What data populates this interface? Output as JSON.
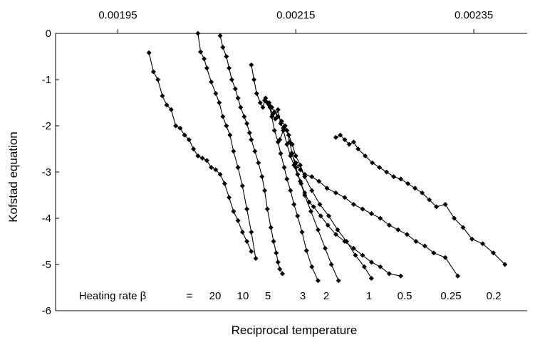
{
  "chart_data": {
    "type": "scatter",
    "title": "",
    "xlabel": "Reciprocal temperature",
    "ylabel": "Kofstad equation",
    "xlim": [
      0.00188,
      0.00241
    ],
    "ylim": [
      -6,
      0
    ],
    "x_ticks": [
      "0.00195",
      "0.00215",
      "0.00235"
    ],
    "y_ticks": [
      "0",
      "-1",
      "-2",
      "-3",
      "-4",
      "-5",
      "-6"
    ],
    "x_tick_values": [
      0.00195,
      0.00215,
      0.00235
    ],
    "y_tick_values": [
      0,
      -1,
      -2,
      -3,
      -4,
      -5,
      -6
    ],
    "grid": false,
    "marker": "diamond",
    "color": "#000000",
    "annotation": {
      "label": "Heating rate β",
      "equals": "=",
      "values": [
        "20",
        "10",
        "5",
        "3",
        "2",
        "1",
        "0.5",
        "0.25",
        "0.2"
      ]
    },
    "series": [
      {
        "x": [
          0.001985,
          0.00199,
          0.001995,
          0.002,
          0.002005,
          0.00201,
          0.002015,
          0.00202,
          0.002025,
          0.00203,
          0.002035,
          0.00204,
          0.002045,
          0.00205,
          0.002055,
          0.00206,
          0.002065,
          0.00207,
          0.002075,
          0.00208,
          0.002085,
          0.00209,
          0.002095,
          0.0021
        ],
        "y": [
          -0.42,
          -0.83,
          -1.0,
          -1.35,
          -1.55,
          -1.65,
          -2.0,
          -2.05,
          -2.2,
          -2.3,
          -2.5,
          -2.65,
          -2.7,
          -2.75,
          -2.9,
          -2.95,
          -3.05,
          -3.25,
          -3.55,
          -3.85,
          -4.05,
          -4.3,
          -4.5,
          -4.72
        ]
      },
      {
        "x": [
          0.00204,
          0.002043,
          0.002047,
          0.00205,
          0.002055,
          0.00206,
          0.002064,
          0.002068,
          0.002072,
          0.002076,
          0.00208,
          0.002085,
          0.00209,
          0.002095,
          0.0021,
          0.002105
        ],
        "y": [
          0,
          -0.4,
          -0.55,
          -0.75,
          -1.05,
          -1.3,
          -1.5,
          -1.8,
          -2.0,
          -2.2,
          -2.55,
          -2.9,
          -3.3,
          -3.8,
          -4.3,
          -4.87
        ]
      },
      {
        "x": [
          0.002065,
          0.002068,
          0.002072,
          0.002075,
          0.002078,
          0.002082,
          0.002085,
          0.002088,
          0.002092,
          0.002095,
          0.002098,
          0.0021,
          0.002104,
          0.002108,
          0.002112,
          0.002115,
          0.002118,
          0.002122,
          0.002125,
          0.002128,
          0.00213,
          0.002132,
          0.002135
        ],
        "y": [
          -0.05,
          -0.3,
          -0.5,
          -0.75,
          -1.0,
          -1.2,
          -1.4,
          -1.6,
          -1.8,
          -1.95,
          -2.15,
          -2.3,
          -2.55,
          -2.8,
          -3.1,
          -3.4,
          -3.8,
          -4.2,
          -4.5,
          -4.75,
          -4.95,
          -5.1,
          -5.2
        ]
      },
      {
        "x": [
          0.0021,
          0.002103,
          0.002106,
          0.00211,
          0.002113,
          0.002116,
          0.00212,
          0.002123,
          0.002126,
          0.00213,
          0.002133,
          0.002137,
          0.00214,
          0.002144,
          0.002148,
          0.002152,
          0.002157,
          0.002162,
          0.002168,
          0.002175
        ],
        "y": [
          -0.68,
          -1.0,
          -1.3,
          -1.5,
          -1.6,
          -1.4,
          -1.55,
          -1.8,
          -2.1,
          -2.35,
          -2.6,
          -2.9,
          -3.15,
          -3.4,
          -3.7,
          -3.95,
          -4.3,
          -4.7,
          -5.05,
          -5.35
        ]
      },
      {
        "x": [
          0.002115,
          0.002118,
          0.002121,
          0.002124,
          0.002127,
          0.00213,
          0.002133,
          0.002136,
          0.00214,
          0.002143,
          0.002146,
          0.00215,
          0.002155,
          0.00216,
          0.002167,
          0.002175,
          0.002183,
          0.00219,
          0.002198
        ],
        "y": [
          -1.45,
          -1.5,
          -1.6,
          -1.75,
          -1.85,
          -1.65,
          -1.95,
          -2.05,
          -2.1,
          -2.35,
          -2.6,
          -2.9,
          -3.2,
          -3.5,
          -3.85,
          -4.25,
          -4.65,
          -5.0,
          -5.35
        ]
      },
      {
        "x": [
          0.00212,
          0.002123,
          0.002126,
          0.00213,
          0.002134,
          0.002138,
          0.002142,
          0.002146,
          0.00215,
          0.002155,
          0.00216,
          0.002168,
          0.002177,
          0.002187,
          0.002197,
          0.002207,
          0.002217,
          0.002227,
          0.002235
        ],
        "y": [
          -1.5,
          -1.6,
          -1.7,
          -1.8,
          -1.9,
          -2.0,
          -2.2,
          -2.4,
          -2.65,
          -2.85,
          -3.1,
          -3.4,
          -3.7,
          -3.95,
          -4.25,
          -4.5,
          -4.8,
          -5.05,
          -5.3
        ]
      },
      {
        "x": [
          0.002132,
          0.002136,
          0.00214,
          0.002144,
          0.002148,
          0.002152,
          0.002156,
          0.00216,
          0.002165,
          0.00217,
          0.002178,
          0.002186,
          0.002195,
          0.002205,
          0.002215,
          0.002225,
          0.002235,
          0.002245,
          0.002255,
          0.002268
        ],
        "y": [
          -2.3,
          -2.1,
          -2.4,
          -2.65,
          -2.85,
          -3.05,
          -3.25,
          -3.45,
          -3.65,
          -3.75,
          -3.95,
          -4.15,
          -4.35,
          -4.5,
          -4.65,
          -4.8,
          -4.95,
          -5.05,
          -5.2,
          -5.25
        ]
      },
      {
        "x": [
          0.002145,
          0.00215,
          0.002155,
          0.00216,
          0.002168,
          0.002176,
          0.002185,
          0.002195,
          0.002205,
          0.002215,
          0.002225,
          0.002235,
          0.002245,
          0.002255,
          0.002265,
          0.002275,
          0.002285,
          0.002295,
          0.002305,
          0.002318,
          0.002332
        ],
        "y": [
          -2.6,
          -2.8,
          -2.95,
          -3.05,
          -3.1,
          -3.2,
          -3.35,
          -3.45,
          -3.55,
          -3.7,
          -3.8,
          -3.9,
          -4.0,
          -4.15,
          -4.25,
          -4.35,
          -4.5,
          -4.6,
          -4.75,
          -4.85,
          -5.25
        ]
      },
      {
        "x": [
          0.002195,
          0.0022,
          0.002205,
          0.00221,
          0.002215,
          0.00222,
          0.002228,
          0.002236,
          0.002244,
          0.002252,
          0.00226,
          0.002268,
          0.002276,
          0.002284,
          0.002292,
          0.0023,
          0.002308,
          0.002318,
          0.002328,
          0.002338,
          0.002348,
          0.00236,
          0.002372,
          0.002385
        ],
        "y": [
          -2.25,
          -2.2,
          -2.3,
          -2.4,
          -2.35,
          -2.5,
          -2.65,
          -2.8,
          -2.9,
          -3.0,
          -3.1,
          -3.15,
          -3.25,
          -3.35,
          -3.45,
          -3.6,
          -3.75,
          -3.7,
          -4.0,
          -4.2,
          -4.45,
          -4.55,
          -4.75,
          -5.0
        ]
      }
    ]
  }
}
